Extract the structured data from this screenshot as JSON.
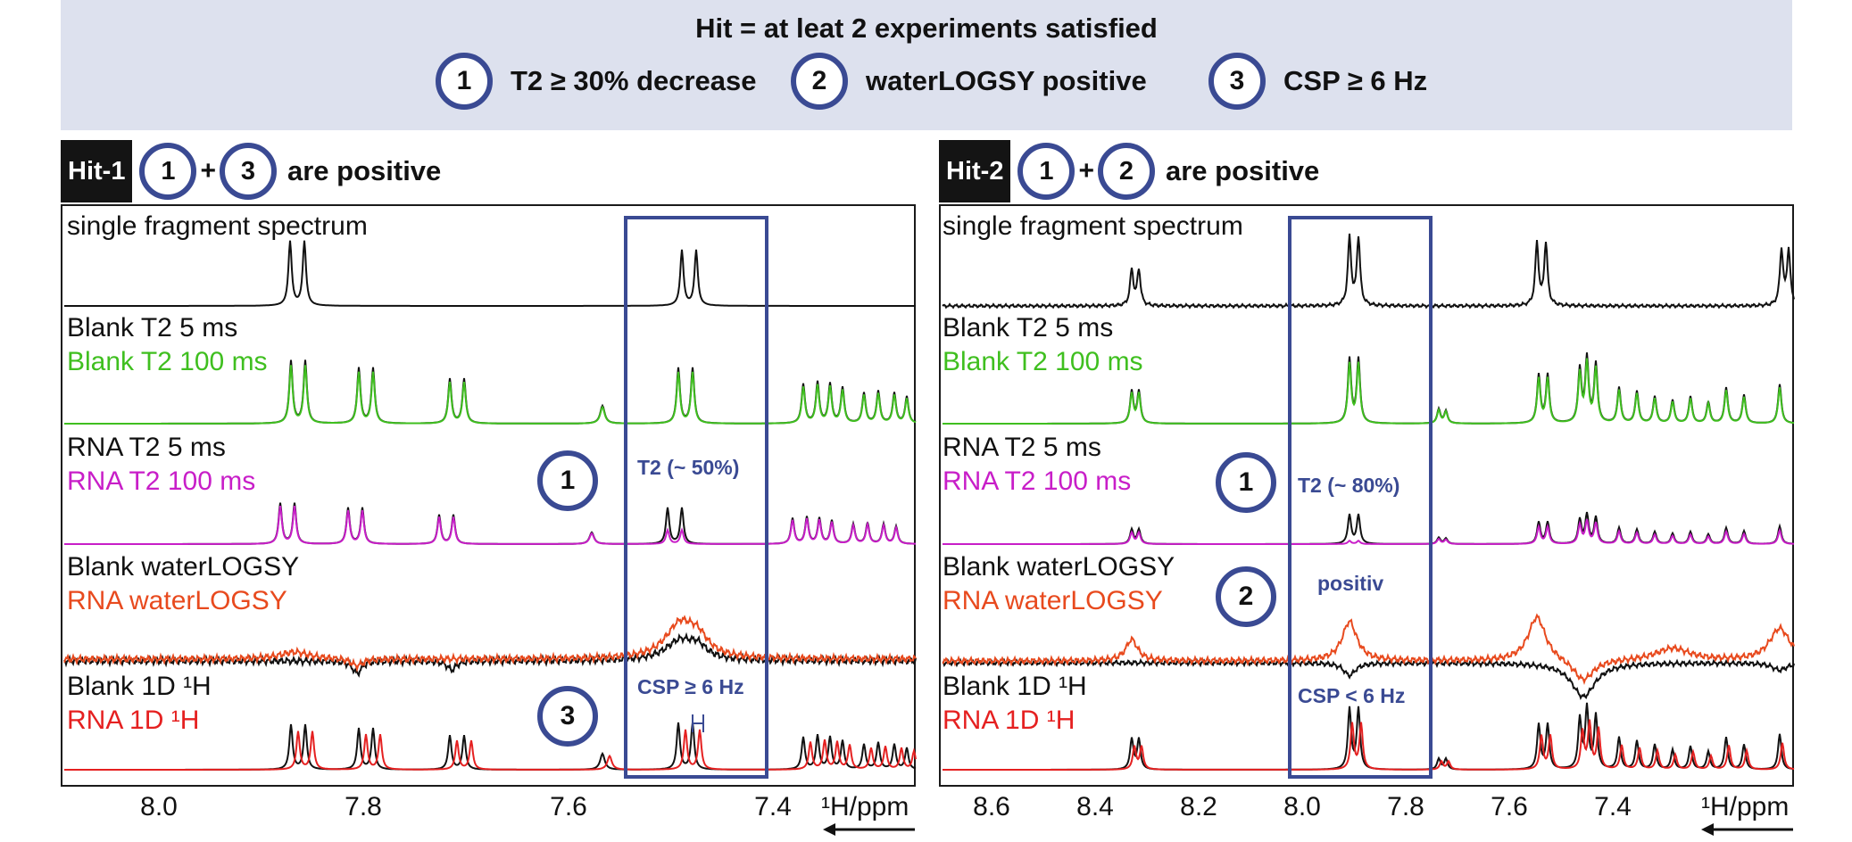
{
  "header": {
    "title": "Hit = at leat 2 experiments satisfied",
    "criteria": [
      {
        "num": "1",
        "label": "T2 ≥ 30% decrease"
      },
      {
        "num": "2",
        "label": "waterLOGSY positive"
      },
      {
        "num": "3",
        "label": "CSP ≥ 6 Hz"
      }
    ]
  },
  "panels": [
    {
      "badge": "Hit-1",
      "circle_a": "1",
      "circle_b": "3",
      "suffix": "are positive",
      "labels": {
        "single": "single fragment spectrum",
        "blank_t2_5": "Blank T2 5 ms",
        "blank_t2_100": "Blank T2 100 ms",
        "rna_t2_5": "RNA T2 5 ms",
        "rna_t2_100": "RNA T2 100 ms",
        "blank_wl": "Blank waterLOGSY",
        "rna_wl": "RNA waterLOGSY",
        "blank_1d": "Blank 1D ¹H",
        "rna_1d": "RNA 1D ¹H"
      },
      "annotations": {
        "t2": "T2 (~ 50%)",
        "csp": "CSP ≥ 6 Hz",
        "circle_t2": "1",
        "circle_csp": "3"
      },
      "axis": {
        "ticks": [
          "8.0",
          "7.8",
          "7.6",
          "7.4"
        ],
        "unit": "¹H/ppm"
      }
    },
    {
      "badge": "Hit-2",
      "circle_a": "1",
      "circle_b": "2",
      "suffix": "are positive",
      "labels": {
        "single": "single fragment spectrum",
        "blank_t2_5": "Blank T2 5 ms",
        "blank_t2_100": "Blank T2 100 ms",
        "rna_t2_5": "RNA T2 5 ms",
        "rna_t2_100": "RNA T2 100 ms",
        "blank_wl": "Blank waterLOGSY",
        "rna_wl": "RNA waterLOGSY",
        "blank_1d": "Blank 1D ¹H",
        "rna_1d": "RNA 1D ¹H"
      },
      "annotations": {
        "t2": "T2 (~ 80%)",
        "positiv": "positiv",
        "csp": "CSP < 6 Hz",
        "circle_t2": "1",
        "circle_wl": "2"
      },
      "axis": {
        "ticks": [
          "8.6",
          "8.4",
          "8.2",
          "8.0",
          "7.8",
          "7.6",
          "7.4"
        ],
        "unit": "¹H/ppm"
      }
    }
  ],
  "colors": {
    "accent": "#3a4a93",
    "black_trace": "#111111",
    "green_trace": "#3fbf1f",
    "magenta_trace": "#c81ec8",
    "orange_trace": "#e84a1e",
    "red_trace": "#e52020",
    "header_bg": "#dde1ee"
  }
}
